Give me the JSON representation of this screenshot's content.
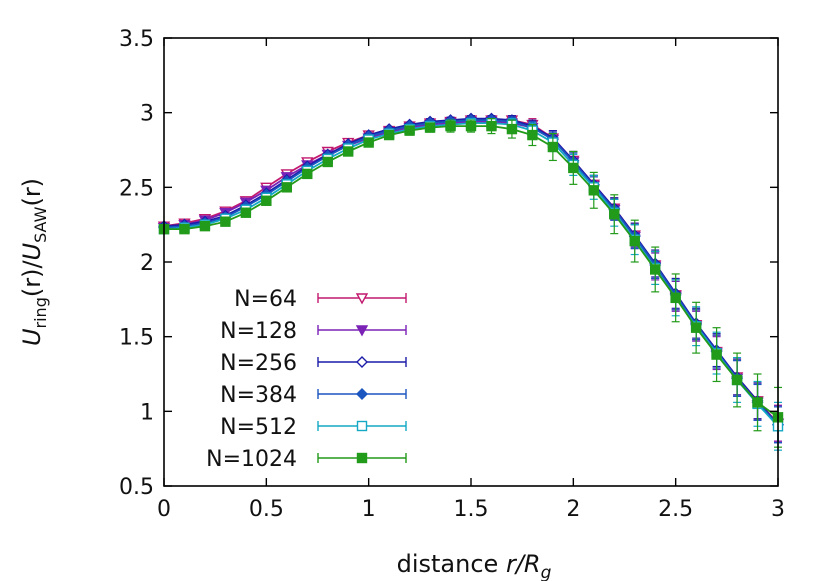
{
  "chart_data": {
    "type": "line",
    "title": "",
    "xlabel": "distance r/R_g",
    "ylabel": "U_ring(r)/U_SAW(r)",
    "xlabel_parts": {
      "prefix": "distance",
      "var": "r/R",
      "sub": "g"
    },
    "ylabel_parts": {
      "u1": "U",
      "sub1": "ring",
      "mid": "(r)/",
      "u2": "U",
      "sub2": "SAW",
      "tail": "(r)"
    },
    "xlim": [
      0,
      3
    ],
    "ylim": [
      0.5,
      3.5
    ],
    "xticks": [
      "0",
      "0.5",
      "1",
      "1.5",
      "2",
      "2.5",
      "3"
    ],
    "yticks": [
      "0.5",
      "1",
      "1.5",
      "2",
      "2.5",
      "3",
      "3.5"
    ],
    "grid": false,
    "legend_position": "bottom-left",
    "x": [
      0.0,
      0.1,
      0.2,
      0.3,
      0.4,
      0.5,
      0.6,
      0.7,
      0.8,
      0.9,
      1.0,
      1.1,
      1.2,
      1.3,
      1.4,
      1.5,
      1.6,
      1.7,
      1.8,
      1.9,
      2.0,
      2.1,
      2.2,
      2.3,
      2.4,
      2.5,
      2.6,
      2.7,
      2.8,
      2.9,
      3.0
    ],
    "series": [
      {
        "name": "N=64",
        "color": "#c2186e",
        "marker": "triangle-down-open",
        "values": [
          2.24,
          2.26,
          2.29,
          2.34,
          2.41,
          2.5,
          2.59,
          2.67,
          2.74,
          2.8,
          2.85,
          2.88,
          2.91,
          2.93,
          2.94,
          2.95,
          2.95,
          2.95,
          2.92,
          2.83,
          2.68,
          2.52,
          2.36,
          2.18,
          1.98,
          1.78,
          1.58,
          1.4,
          1.23,
          1.07,
          0.92
        ],
        "err": [
          0.01,
          0.01,
          0.01,
          0.01,
          0.01,
          0.01,
          0.01,
          0.01,
          0.01,
          0.01,
          0.01,
          0.01,
          0.01,
          0.02,
          0.02,
          0.02,
          0.02,
          0.03,
          0.04,
          0.05,
          0.06,
          0.06,
          0.07,
          0.08,
          0.09,
          0.1,
          0.1,
          0.11,
          0.12,
          0.12,
          0.12
        ]
      },
      {
        "name": "N=128",
        "color": "#7b22b6",
        "marker": "triangle-down-filled",
        "values": [
          2.23,
          2.25,
          2.28,
          2.33,
          2.4,
          2.48,
          2.57,
          2.65,
          2.72,
          2.78,
          2.83,
          2.87,
          2.9,
          2.92,
          2.93,
          2.94,
          2.94,
          2.93,
          2.9,
          2.82,
          2.67,
          2.51,
          2.35,
          2.17,
          1.97,
          1.77,
          1.57,
          1.39,
          1.22,
          1.06,
          0.92
        ],
        "err": [
          0.01,
          0.01,
          0.01,
          0.01,
          0.01,
          0.01,
          0.01,
          0.01,
          0.01,
          0.01,
          0.01,
          0.01,
          0.01,
          0.02,
          0.02,
          0.02,
          0.02,
          0.03,
          0.04,
          0.05,
          0.06,
          0.06,
          0.07,
          0.08,
          0.09,
          0.1,
          0.1,
          0.11,
          0.12,
          0.12,
          0.12
        ]
      },
      {
        "name": "N=256",
        "color": "#1c1ca8",
        "marker": "diamond-open",
        "values": [
          2.24,
          2.25,
          2.27,
          2.31,
          2.38,
          2.46,
          2.55,
          2.64,
          2.72,
          2.79,
          2.85,
          2.89,
          2.92,
          2.94,
          2.95,
          2.96,
          2.96,
          2.95,
          2.91,
          2.83,
          2.68,
          2.52,
          2.36,
          2.18,
          1.99,
          1.79,
          1.59,
          1.41,
          1.23,
          1.07,
          0.91
        ],
        "err": [
          0.01,
          0.01,
          0.01,
          0.01,
          0.01,
          0.01,
          0.01,
          0.01,
          0.01,
          0.01,
          0.01,
          0.01,
          0.01,
          0.02,
          0.02,
          0.02,
          0.02,
          0.03,
          0.04,
          0.05,
          0.06,
          0.06,
          0.07,
          0.08,
          0.09,
          0.1,
          0.1,
          0.11,
          0.12,
          0.12,
          0.12
        ]
      },
      {
        "name": "N=384",
        "color": "#1b55c0",
        "marker": "diamond-filled",
        "values": [
          2.23,
          2.24,
          2.26,
          2.3,
          2.37,
          2.45,
          2.54,
          2.63,
          2.71,
          2.78,
          2.84,
          2.88,
          2.91,
          2.93,
          2.94,
          2.95,
          2.95,
          2.94,
          2.9,
          2.82,
          2.67,
          2.51,
          2.35,
          2.17,
          1.98,
          1.78,
          1.58,
          1.4,
          1.22,
          1.06,
          0.91
        ],
        "err": [
          0.01,
          0.01,
          0.01,
          0.01,
          0.01,
          0.01,
          0.01,
          0.01,
          0.01,
          0.01,
          0.01,
          0.01,
          0.01,
          0.02,
          0.02,
          0.02,
          0.02,
          0.03,
          0.04,
          0.05,
          0.06,
          0.06,
          0.07,
          0.08,
          0.09,
          0.1,
          0.1,
          0.11,
          0.12,
          0.12,
          0.12
        ]
      },
      {
        "name": "N=512",
        "color": "#14a8c4",
        "marker": "square-open",
        "values": [
          2.22,
          2.23,
          2.25,
          2.29,
          2.35,
          2.43,
          2.52,
          2.61,
          2.69,
          2.76,
          2.82,
          2.86,
          2.89,
          2.91,
          2.92,
          2.93,
          2.93,
          2.92,
          2.88,
          2.8,
          2.65,
          2.5,
          2.33,
          2.15,
          1.96,
          1.76,
          1.57,
          1.39,
          1.21,
          1.05,
          0.9
        ],
        "err": [
          0.01,
          0.01,
          0.01,
          0.01,
          0.01,
          0.01,
          0.01,
          0.01,
          0.01,
          0.01,
          0.01,
          0.02,
          0.02,
          0.02,
          0.03,
          0.03,
          0.03,
          0.04,
          0.05,
          0.06,
          0.07,
          0.08,
          0.09,
          0.1,
          0.11,
          0.12,
          0.13,
          0.14,
          0.15,
          0.15,
          0.16
        ]
      },
      {
        "name": "N=1024",
        "color": "#229a1a",
        "marker": "square-filled",
        "values": [
          2.22,
          2.22,
          2.24,
          2.27,
          2.33,
          2.41,
          2.5,
          2.59,
          2.67,
          2.74,
          2.8,
          2.85,
          2.88,
          2.9,
          2.91,
          2.91,
          2.91,
          2.89,
          2.85,
          2.77,
          2.63,
          2.48,
          2.32,
          2.14,
          1.95,
          1.76,
          1.56,
          1.38,
          1.21,
          1.06,
          0.96
        ],
        "err": [
          0.01,
          0.01,
          0.01,
          0.01,
          0.01,
          0.01,
          0.01,
          0.01,
          0.01,
          0.02,
          0.02,
          0.02,
          0.03,
          0.03,
          0.04,
          0.04,
          0.05,
          0.06,
          0.07,
          0.09,
          0.11,
          0.12,
          0.13,
          0.14,
          0.15,
          0.16,
          0.17,
          0.18,
          0.18,
          0.19,
          0.2
        ]
      }
    ]
  }
}
